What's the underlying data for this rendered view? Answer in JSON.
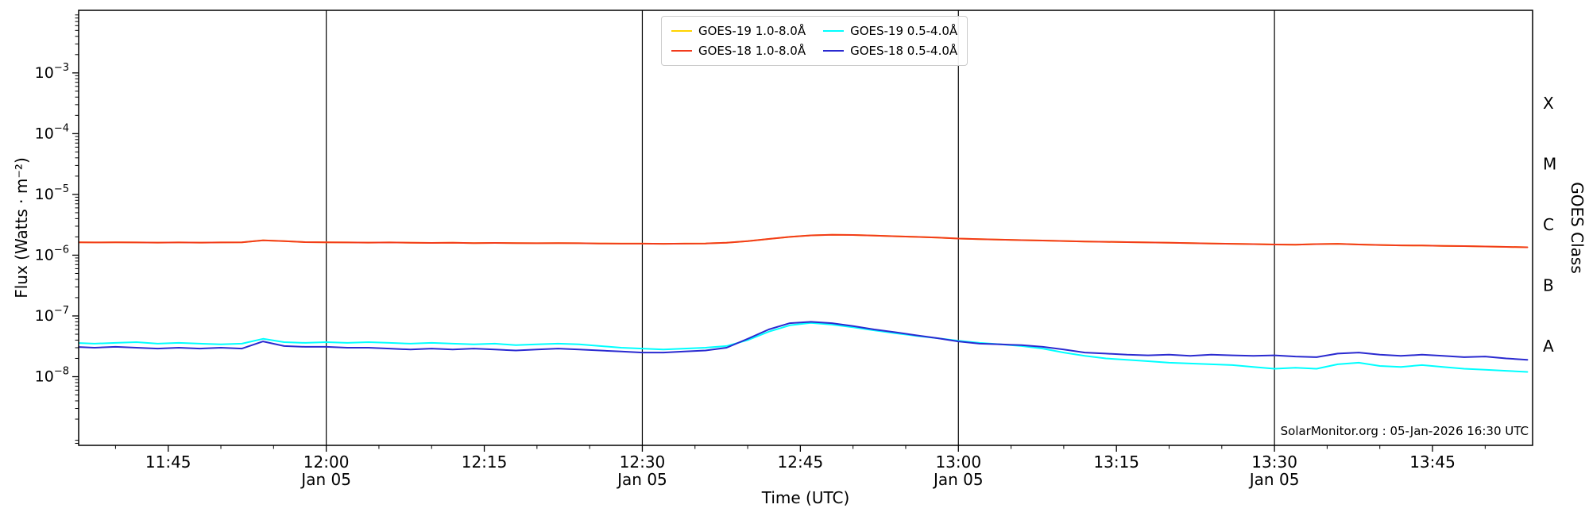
{
  "chart_data": {
    "type": "line",
    "title": "",
    "xlabel": "Time (UTC)",
    "ylabel": "Flux (Watts · m⁻²)",
    "ylabel_right": "GOES Class",
    "annotation": "SolarMonitor.org : 05-Jan-2026 16:30 UTC",
    "x_axis": {
      "unit": "minutes after 00:00 UTC, 05-Jan-2026",
      "range_minutes": [
        696.5,
        834.5
      ],
      "minor_tick_interval_minutes": 5,
      "major_ticks": [
        {
          "minute": 705,
          "label": "11:45"
        },
        {
          "minute": 720,
          "label": "12:00",
          "sublabel": "Jan 05"
        },
        {
          "minute": 735,
          "label": "12:15"
        },
        {
          "minute": 750,
          "label": "12:30",
          "sublabel": "Jan 05"
        },
        {
          "minute": 765,
          "label": "12:45"
        },
        {
          "minute": 780,
          "label": "13:00",
          "sublabel": "Jan 05"
        },
        {
          "minute": 795,
          "label": "13:15"
        },
        {
          "minute": 810,
          "label": "13:30",
          "sublabel": "Jan 05"
        },
        {
          "minute": 825,
          "label": "13:45"
        }
      ]
    },
    "y_axis": {
      "scale": "log",
      "units": "Watts per square metre",
      "range_log10": [
        -9.13,
        -1.97
      ],
      "major_ticks_log10": [
        -3,
        -4,
        -5,
        -6,
        -7,
        -8
      ]
    },
    "right_axis_classes": [
      {
        "label": "X",
        "log10_mid": -3.5
      },
      {
        "label": "M",
        "log10_mid": -4.5
      },
      {
        "label": "C",
        "log10_mid": -5.5
      },
      {
        "label": "B",
        "log10_mid": -6.5
      },
      {
        "label": "A",
        "log10_mid": -7.5
      }
    ],
    "vertical_lines_minutes": [
      720,
      750,
      780,
      810
    ],
    "legend": {
      "position": "upper center",
      "ncol": 2
    },
    "x_minutes": [
      696,
      698,
      700,
      702,
      704,
      706,
      708,
      710,
      712,
      714,
      716,
      718,
      720,
      722,
      724,
      726,
      728,
      730,
      732,
      734,
      736,
      738,
      740,
      742,
      744,
      746,
      748,
      750,
      752,
      754,
      756,
      758,
      760,
      762,
      764,
      766,
      768,
      770,
      772,
      774,
      776,
      778,
      780,
      782,
      784,
      786,
      788,
      790,
      792,
      794,
      796,
      798,
      800,
      802,
      804,
      806,
      808,
      810,
      812,
      814,
      816,
      818,
      820,
      822,
      824,
      826,
      828,
      830,
      832,
      834
    ],
    "series": [
      {
        "name": "GOES-19 1.0-8.0Å",
        "color": "#ffd400",
        "values": [
          1.63e-06,
          1.62e-06,
          1.63e-06,
          1.62e-06,
          1.61e-06,
          1.62e-06,
          1.61e-06,
          1.62e-06,
          1.63e-06,
          1.76e-06,
          1.7e-06,
          1.64e-06,
          1.63e-06,
          1.62e-06,
          1.61e-06,
          1.62e-06,
          1.6e-06,
          1.59e-06,
          1.6e-06,
          1.58e-06,
          1.59e-06,
          1.58e-06,
          1.57e-06,
          1.58e-06,
          1.57e-06,
          1.56e-06,
          1.55e-06,
          1.55e-06,
          1.54e-06,
          1.55e-06,
          1.56e-06,
          1.6e-06,
          1.7e-06,
          1.85e-06,
          2e-06,
          2.12e-06,
          2.17e-06,
          2.15e-06,
          2.1e-06,
          2.05e-06,
          2e-06,
          1.95e-06,
          1.88e-06,
          1.84e-06,
          1.8e-06,
          1.77e-06,
          1.74e-06,
          1.71e-06,
          1.68e-06,
          1.66e-06,
          1.64e-06,
          1.62e-06,
          1.6e-06,
          1.58e-06,
          1.56e-06,
          1.54e-06,
          1.52e-06,
          1.5e-06,
          1.49e-06,
          1.52e-06,
          1.54e-06,
          1.5e-06,
          1.47e-06,
          1.45e-06,
          1.44e-06,
          1.42e-06,
          1.41e-06,
          1.39e-06,
          1.37e-06,
          1.35e-06
        ]
      },
      {
        "name": "GOES-18 1.0-8.0Å",
        "color": "#f23b1c",
        "values": [
          1.63e-06,
          1.62e-06,
          1.63e-06,
          1.62e-06,
          1.61e-06,
          1.62e-06,
          1.61e-06,
          1.62e-06,
          1.63e-06,
          1.76e-06,
          1.7e-06,
          1.64e-06,
          1.63e-06,
          1.62e-06,
          1.61e-06,
          1.62e-06,
          1.6e-06,
          1.59e-06,
          1.6e-06,
          1.58e-06,
          1.59e-06,
          1.58e-06,
          1.57e-06,
          1.58e-06,
          1.57e-06,
          1.56e-06,
          1.55e-06,
          1.55e-06,
          1.54e-06,
          1.55e-06,
          1.56e-06,
          1.6e-06,
          1.7e-06,
          1.85e-06,
          2e-06,
          2.12e-06,
          2.17e-06,
          2.15e-06,
          2.1e-06,
          2.05e-06,
          2e-06,
          1.95e-06,
          1.88e-06,
          1.84e-06,
          1.8e-06,
          1.77e-06,
          1.74e-06,
          1.71e-06,
          1.68e-06,
          1.66e-06,
          1.64e-06,
          1.62e-06,
          1.6e-06,
          1.58e-06,
          1.56e-06,
          1.54e-06,
          1.52e-06,
          1.5e-06,
          1.49e-06,
          1.52e-06,
          1.54e-06,
          1.5e-06,
          1.47e-06,
          1.45e-06,
          1.44e-06,
          1.42e-06,
          1.41e-06,
          1.39e-06,
          1.37e-06,
          1.35e-06
        ]
      },
      {
        "name": "GOES-19 0.5-4.0Å",
        "color": "#00ffff",
        "values": [
          3.6e-08,
          3.5e-08,
          3.6e-08,
          3.7e-08,
          3.5e-08,
          3.6e-08,
          3.5e-08,
          3.4e-08,
          3.5e-08,
          4.2e-08,
          3.7e-08,
          3.6e-08,
          3.7e-08,
          3.6e-08,
          3.7e-08,
          3.6e-08,
          3.5e-08,
          3.6e-08,
          3.5e-08,
          3.4e-08,
          3.5e-08,
          3.3e-08,
          3.4e-08,
          3.5e-08,
          3.4e-08,
          3.2e-08,
          3e-08,
          2.9e-08,
          2.8e-08,
          2.9e-08,
          3e-08,
          3.2e-08,
          4e-08,
          5.5e-08,
          7e-08,
          7.7e-08,
          7.2e-08,
          6.5e-08,
          5.8e-08,
          5.2e-08,
          4.7e-08,
          4.3e-08,
          3.9e-08,
          3.6e-08,
          3.4e-08,
          3.2e-08,
          2.9e-08,
          2.5e-08,
          2.2e-08,
          2e-08,
          1.9e-08,
          1.8e-08,
          1.7e-08,
          1.65e-08,
          1.6e-08,
          1.55e-08,
          1.45e-08,
          1.35e-08,
          1.4e-08,
          1.35e-08,
          1.6e-08,
          1.7e-08,
          1.5e-08,
          1.45e-08,
          1.55e-08,
          1.45e-08,
          1.35e-08,
          1.3e-08,
          1.25e-08,
          1.2e-08
        ]
      },
      {
        "name": "GOES-18 0.5-4.0Å",
        "color": "#2a2ad0",
        "values": [
          3.1e-08,
          3e-08,
          3.1e-08,
          3e-08,
          2.9e-08,
          3e-08,
          2.9e-08,
          3e-08,
          2.9e-08,
          3.8e-08,
          3.2e-08,
          3.1e-08,
          3.1e-08,
          3e-08,
          3e-08,
          2.9e-08,
          2.8e-08,
          2.9e-08,
          2.8e-08,
          2.9e-08,
          2.8e-08,
          2.7e-08,
          2.8e-08,
          2.9e-08,
          2.8e-08,
          2.7e-08,
          2.6e-08,
          2.5e-08,
          2.5e-08,
          2.6e-08,
          2.7e-08,
          3e-08,
          4.2e-08,
          6e-08,
          7.6e-08,
          8e-08,
          7.6e-08,
          6.8e-08,
          6e-08,
          5.4e-08,
          4.8e-08,
          4.3e-08,
          3.8e-08,
          3.5e-08,
          3.4e-08,
          3.3e-08,
          3.1e-08,
          2.8e-08,
          2.5e-08,
          2.4e-08,
          2.3e-08,
          2.25e-08,
          2.3e-08,
          2.2e-08,
          2.3e-08,
          2.25e-08,
          2.2e-08,
          2.25e-08,
          2.15e-08,
          2.1e-08,
          2.4e-08,
          2.5e-08,
          2.3e-08,
          2.2e-08,
          2.3e-08,
          2.2e-08,
          2.1e-08,
          2.15e-08,
          2e-08,
          1.9e-08
        ]
      }
    ]
  }
}
